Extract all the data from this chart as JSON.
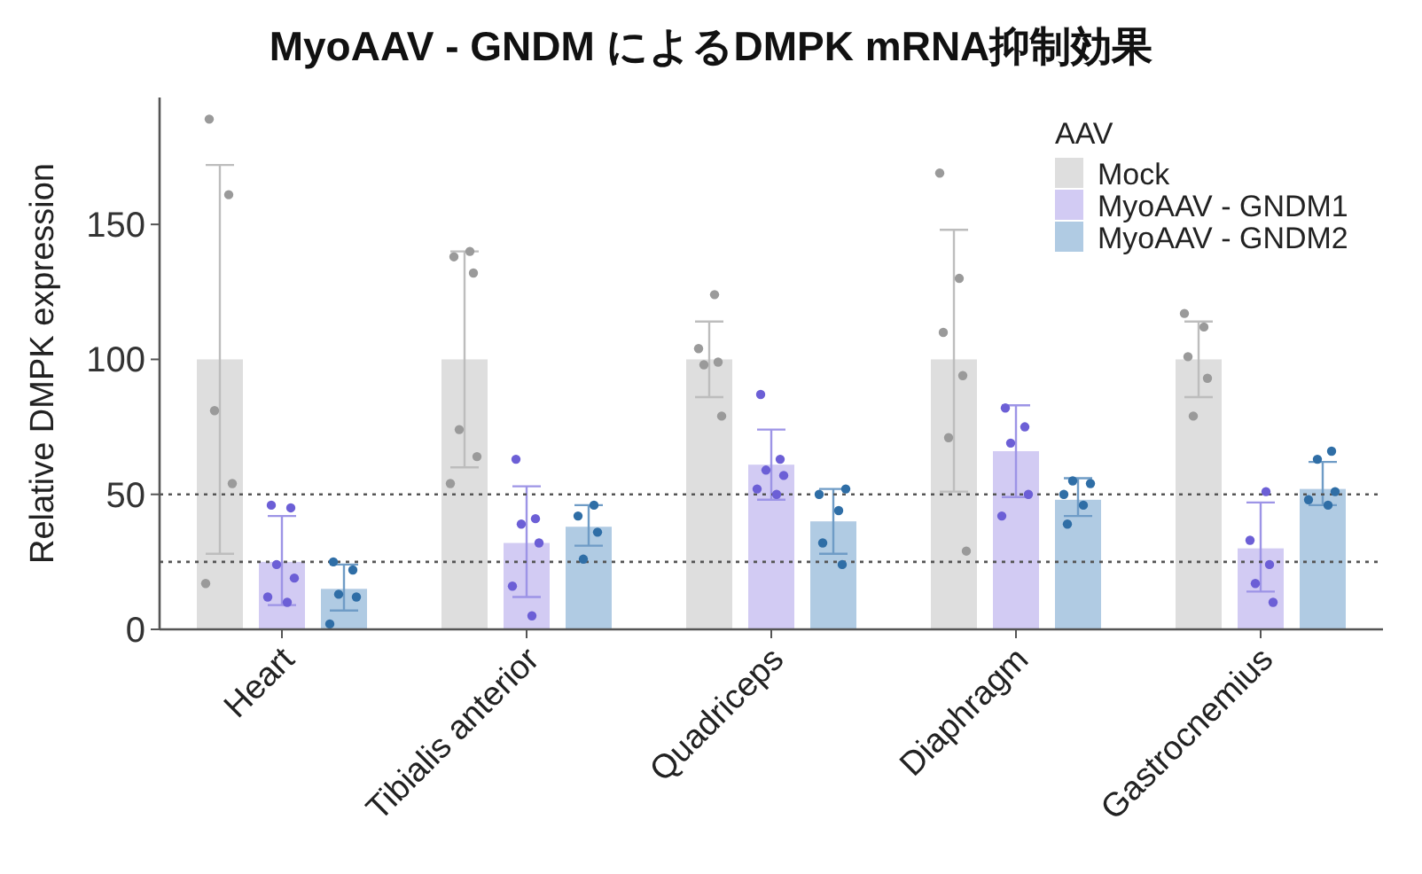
{
  "chart_data": {
    "type": "bar",
    "title": "MyoAAV - GNDM によるDMPK mRNA抑制効果",
    "ylabel": "Relative DMPK expression",
    "legend_title": "AAV",
    "legend": "top right",
    "categories": [
      "Heart",
      "Tibialis anterior",
      "Quadriceps",
      "Diaphragm",
      "Gastrocnemius"
    ],
    "ylim": [
      0,
      197
    ],
    "yticks": [
      0,
      50,
      100,
      150
    ],
    "ref_lines": [
      {
        "axis": "y",
        "value": 50,
        "line_style": "dotted",
        "color": "#555555"
      },
      {
        "axis": "y",
        "value": 25,
        "line_style": "dotted",
        "color": "#555555"
      }
    ],
    "series": [
      {
        "name": "Mock",
        "type": "bar",
        "color": "#dedede",
        "values": [
          100,
          100,
          100,
          100,
          100
        ],
        "errors": [
          [
            28,
            172
          ],
          [
            60,
            140
          ],
          [
            86,
            114
          ],
          [
            51,
            148
          ],
          [
            86,
            114
          ]
        ]
      },
      {
        "name": "MyoAAV - GNDM1",
        "type": "bar",
        "color": "#d2cbf3",
        "values": [
          25,
          32,
          61,
          66,
          30
        ],
        "errors": [
          [
            9,
            42
          ],
          [
            12,
            53
          ],
          [
            48,
            74
          ],
          [
            49,
            83
          ],
          [
            14,
            47
          ]
        ]
      },
      {
        "name": "MyoAAV - GNDM2",
        "type": "bar",
        "color": "#b0cbe3",
        "values": [
          15,
          38,
          40,
          48,
          52
        ],
        "errors": [
          [
            7,
            24
          ],
          [
            31,
            46
          ],
          [
            28,
            52
          ],
          [
            42,
            56
          ],
          [
            46,
            62
          ]
        ]
      },
      {
        "type": "scatter",
        "color": "#9a9a9a",
        "marker": "circle",
        "x": [
          "Heart",
          "Heart",
          "Heart",
          "Heart",
          "Heart",
          "Tibialis anterior",
          "Tibialis anterior",
          "Tibialis anterior",
          "Tibialis anterior",
          "Tibialis anterior",
          "Tibialis anterior",
          "Quadriceps",
          "Quadriceps",
          "Quadriceps",
          "Quadriceps",
          "Quadriceps",
          "Diaphragm",
          "Diaphragm",
          "Diaphragm",
          "Diaphragm",
          "Diaphragm",
          "Diaphragm",
          "Gastrocnemius",
          "Gastrocnemius",
          "Gastrocnemius",
          "Gastrocnemius",
          "Gastrocnemius"
        ],
        "values": [
          189,
          161,
          81,
          54,
          17,
          140,
          138,
          132,
          74,
          64,
          54,
          124,
          104,
          99,
          98,
          79,
          169,
          130,
          110,
          94,
          71,
          29,
          117,
          112,
          101,
          93,
          79
        ]
      },
      {
        "type": "scatter",
        "color": "#6c5fd6",
        "marker": "circle",
        "x": [
          "Heart",
          "Heart",
          "Heart",
          "Heart",
          "Heart",
          "Heart",
          "Tibialis anterior",
          "Tibialis anterior",
          "Tibialis anterior",
          "Tibialis anterior",
          "Tibialis anterior",
          "Tibialis anterior",
          "Quadriceps",
          "Quadriceps",
          "Quadriceps",
          "Quadriceps",
          "Quadriceps",
          "Quadriceps",
          "Diaphragm",
          "Diaphragm",
          "Diaphragm",
          "Diaphragm",
          "Diaphragm",
          "Gastrocnemius",
          "Gastrocnemius",
          "Gastrocnemius",
          "Gastrocnemius",
          "Gastrocnemius"
        ],
        "values": [
          46,
          45,
          24,
          19,
          12,
          10,
          63,
          41,
          39,
          32,
          16,
          5,
          87,
          63,
          59,
          57,
          52,
          50,
          82,
          75,
          69,
          50,
          42,
          51,
          33,
          24,
          17,
          10
        ]
      },
      {
        "type": "scatter",
        "color": "#2f6ea6",
        "marker": "circle",
        "x": [
          "Heart",
          "Heart",
          "Heart",
          "Heart",
          "Heart",
          "Tibialis anterior",
          "Tibialis anterior",
          "Tibialis anterior",
          "Tibialis anterior",
          "Quadriceps",
          "Quadriceps",
          "Quadriceps",
          "Quadriceps",
          "Quadriceps",
          "Diaphragm",
          "Diaphragm",
          "Diaphragm",
          "Diaphragm",
          "Diaphragm",
          "Gastrocnemius",
          "Gastrocnemius",
          "Gastrocnemius",
          "Gastrocnemius",
          "Gastrocnemius"
        ],
        "values": [
          25,
          22,
          13,
          12,
          2,
          46,
          42,
          36,
          26,
          52,
          50,
          44,
          32,
          24,
          55,
          54,
          50,
          46,
          39,
          66,
          63,
          51,
          48,
          46
        ]
      }
    ]
  }
}
